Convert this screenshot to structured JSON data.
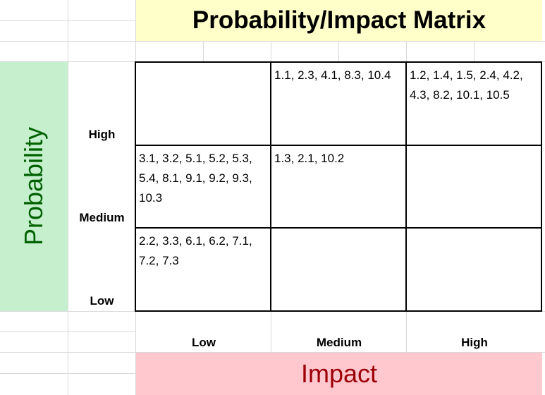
{
  "title": "Probability/Impact Matrix",
  "probability_label": "Probability",
  "impact_label": "Impact",
  "row_labels": [
    "High",
    "Medium",
    "Low"
  ],
  "col_labels": [
    "Low",
    "Medium",
    "High"
  ],
  "cells": [
    [
      "",
      "1.1, 2.3, 4.1, 8.3, 10.4",
      "1.2, 1.4, 1.5, 2.4, 4.2, 4.3, 8.2, 10.1, 10.5"
    ],
    [
      "3.1, 3.2, 5.1, 5.2, 5.3, 5.4, 8.1, 9.1, 9.2, 9.3, 10.3",
      "1.3, 2.1, 10.2",
      ""
    ],
    [
      "2.2, 3.3, 6.1, 6.2, 7.1, 7.2, 7.3",
      "",
      ""
    ]
  ],
  "colors": {
    "title_fill": "#ffffc9",
    "probability_fill": "#c6efce",
    "probability_text": "#006100",
    "impact_fill": "#ffc7ce",
    "impact_text": "#9c0006",
    "gridline": "#d9d9d9"
  }
}
